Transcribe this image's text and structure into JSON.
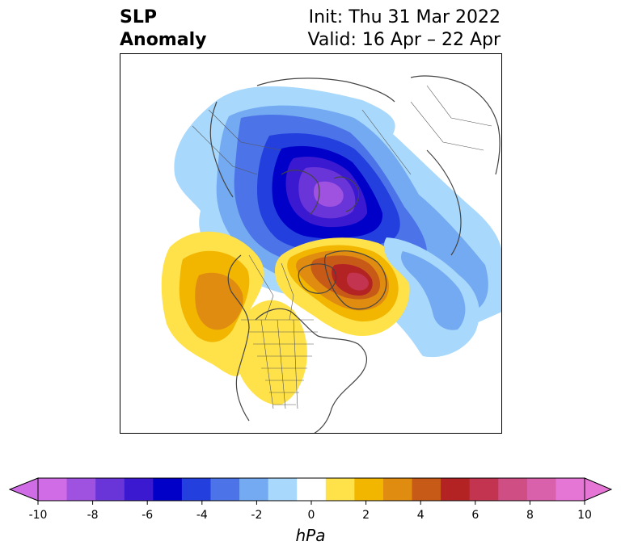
{
  "header": {
    "variable_line1": "SLP",
    "variable_line2": "Anomaly",
    "init_line": "Init: Thu 31 Mar 2022",
    "valid_line": "Valid: 16 Apr – 22 Apr"
  },
  "colorbar": {
    "unit_label": "hPa",
    "levels": [
      -10,
      -9,
      -8,
      -7,
      -6,
      -5,
      -4,
      -3,
      -2,
      -1,
      1,
      2,
      3,
      4,
      5,
      6,
      7,
      8,
      9,
      10
    ],
    "colors": [
      "#d06ce6",
      "#9f52e0",
      "#6a35d8",
      "#3b19d0",
      "#0000c8",
      "#2340de",
      "#4c74e8",
      "#74aaf1",
      "#a8d8fc",
      "#ffffff",
      "#ffe24a",
      "#f2b600",
      "#df8c10",
      "#c85a18",
      "#b32324",
      "#c2344f",
      "#cf4e84",
      "#d960ab",
      "#e676d6"
    ],
    "ticks": [
      "-10",
      "-8",
      "-6",
      "-4",
      "-2",
      "0",
      "2",
      "4",
      "6",
      "8",
      "10"
    ],
    "under_color": "#d06ce6",
    "over_color": "#e676d6"
  },
  "map": {
    "projection": "north-polar-stereographic",
    "region": "North America / Arctic",
    "features": [
      "coastlines",
      "country-borders",
      "us-state-borders",
      "canada-province-borders"
    ],
    "anomaly_centers": [
      {
        "name": "arctic-low",
        "region": "Arctic / northern Siberia",
        "sign": "negative",
        "peak_hpa": -8
      },
      {
        "name": "northeast-pacific-high",
        "region": "Gulf of Alaska / NE Pacific",
        "sign": "positive",
        "peak_hpa": 4
      },
      {
        "name": "greenland-high",
        "region": "Greenland / Baffin Bay",
        "sign": "positive",
        "peak_hpa": 6
      },
      {
        "name": "north-atlantic-low",
        "region": "Western North Atlantic",
        "sign": "negative",
        "peak_hpa": -3
      }
    ]
  }
}
